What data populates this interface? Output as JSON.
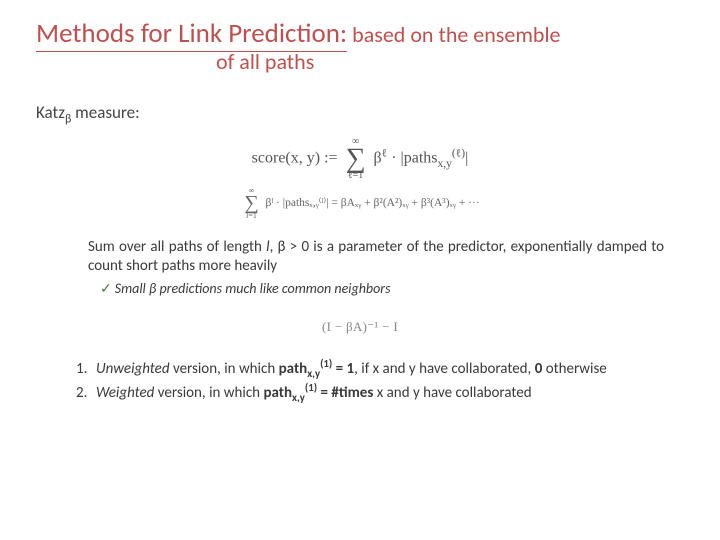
{
  "title": {
    "main_underlined": "Methods for Link Prediction:",
    "main_tail": " based on the ensemble",
    "line2": "of all paths",
    "color": "#c0504d"
  },
  "katz": {
    "label_prefix": "Katz",
    "label_sub": "β",
    "label_suffix": " measure:"
  },
  "formula_main": {
    "lhs": "score(x, y) := ",
    "sum_top": "∞",
    "sum_bottom": "ℓ=1",
    "rhs_a": "β",
    "rhs_a_sup": "ℓ",
    "rhs_mid": " · |paths",
    "rhs_sub": "x,y",
    "rhs_sup": "(ℓ)",
    "rhs_end": "|"
  },
  "formula_sub": {
    "sum_top": "∞",
    "sum_bottom": "l=1",
    "body": "βˡ · |pathsₓ,ᵧ⁽ˡ⁾| = βAₓᵧ + β²(A²)ₓᵧ + β³(A³)ₓᵧ + ···"
  },
  "para": {
    "t1": "Sum over all paths of length ",
    "it1": "l",
    "t2": ", β > 0 is a parameter of the predictor, exponentially damped to count short paths more heavily"
  },
  "check": {
    "tick": "✓",
    "text": "Small β predictions much like common neighbors"
  },
  "formula_inv": {
    "text": "(I − βA)⁻¹ − I"
  },
  "num1": {
    "n": "1.",
    "it": "Unweighted",
    "t1": " version, in which ",
    "bold1": "path",
    "sub1": "x,y",
    "sup1": "(1)",
    "t2": " = 1",
    "t3": ", if x and y have collaborated, ",
    "bold2": "0",
    "t4": " otherwise"
  },
  "num2": {
    "n": "2.",
    "it": "Weighted",
    "t1": " version, in which ",
    "bold1": "path",
    "sub1": "x,y",
    "sup1": "(1)",
    "t2": " = #times",
    "t3": " x and y have collaborated"
  }
}
